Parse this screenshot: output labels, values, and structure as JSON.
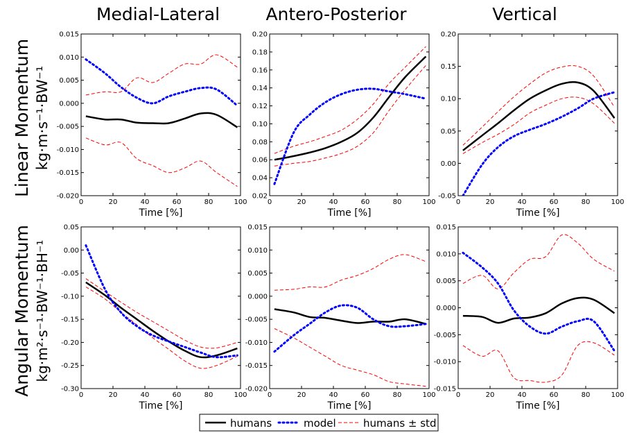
{
  "column_titles": [
    "Medial-Lateral",
    "Antero-Posterior",
    "Vertical"
  ],
  "row_labels": [
    {
      "line1": "Linear Momentum",
      "line2": "kg·m·s⁻¹·BW⁻¹"
    },
    {
      "line1": "Angular Momentum",
      "line2": "kg·m²·s⁻¹·BW⁻¹·BH⁻¹"
    }
  ],
  "legend": {
    "items": [
      {
        "label": "humans",
        "color": "#000000",
        "style": "solid"
      },
      {
        "label": "model",
        "color": "#0000ff",
        "style": "dotted"
      },
      {
        "label": "humans ± std",
        "color": "#ff0000",
        "style": "dashed"
      }
    ]
  },
  "chart_data": [
    {
      "type": "line",
      "xlabel": "Time [%]",
      "ylabel": "",
      "xlim": [
        0,
        100
      ],
      "ylim": [
        -0.02,
        0.015
      ],
      "xticks": [
        0,
        20,
        40,
        60,
        80,
        100
      ],
      "yticks": [
        -0.02,
        -0.015,
        -0.01,
        -0.005,
        0.0,
        0.005,
        0.01,
        0.015
      ],
      "ytick_labels": [
        "-0.020",
        "-0.015",
        "-0.010",
        "-0.005",
        "0.000",
        "0.005",
        "0.010",
        "0.015"
      ],
      "x": [
        3,
        15,
        25,
        35,
        45,
        55,
        65,
        75,
        85,
        98
      ],
      "series": [
        {
          "name": "humans",
          "values": [
            -0.0028,
            -0.0035,
            -0.0035,
            -0.0042,
            -0.0043,
            -0.0043,
            -0.0033,
            -0.0022,
            -0.0025,
            -0.0052
          ]
        },
        {
          "name": "model",
          "values": [
            0.0095,
            0.0065,
            0.0035,
            0.0012,
            0.0,
            0.0015,
            0.0025,
            0.0033,
            0.003,
            -0.0005
          ]
        },
        {
          "name": "humans + std",
          "values": [
            0.0018,
            0.0025,
            0.0025,
            0.0055,
            0.0045,
            0.0065,
            0.0085,
            0.0085,
            0.0105,
            0.0078
          ]
        },
        {
          "name": "humans - std",
          "values": [
            -0.0075,
            -0.009,
            -0.0085,
            -0.012,
            -0.0135,
            -0.015,
            -0.014,
            -0.0125,
            -0.015,
            -0.018
          ]
        }
      ]
    },
    {
      "type": "line",
      "xlabel": "Time [%]",
      "ylabel": "",
      "xlim": [
        0,
        100
      ],
      "ylim": [
        0.02,
        0.2
      ],
      "xticks": [
        0,
        20,
        40,
        60,
        80,
        100
      ],
      "yticks": [
        0.02,
        0.04,
        0.06,
        0.08,
        0.1,
        0.12,
        0.14,
        0.16,
        0.18,
        0.2
      ],
      "ytick_labels": [
        "0.02",
        "0.04",
        "0.06",
        "0.08",
        "0.10",
        "0.12",
        "0.14",
        "0.16",
        "0.18",
        "0.20"
      ],
      "x": [
        3,
        15,
        25,
        35,
        45,
        55,
        65,
        75,
        85,
        98
      ],
      "series": [
        {
          "name": "humans",
          "values": [
            0.06,
            0.064,
            0.068,
            0.073,
            0.08,
            0.09,
            0.107,
            0.13,
            0.152,
            0.175
          ]
        },
        {
          "name": "model",
          "values": [
            0.033,
            0.09,
            0.11,
            0.124,
            0.133,
            0.138,
            0.139,
            0.136,
            0.133,
            0.128
          ]
        },
        {
          "name": "humans + std",
          "values": [
            0.067,
            0.075,
            0.08,
            0.086,
            0.093,
            0.105,
            0.122,
            0.145,
            0.163,
            0.186
          ]
        },
        {
          "name": "humans - std",
          "values": [
            0.053,
            0.056,
            0.058,
            0.062,
            0.067,
            0.075,
            0.09,
            0.115,
            0.138,
            0.165
          ]
        }
      ]
    },
    {
      "type": "line",
      "xlabel": "Time [%]",
      "ylabel": "",
      "xlim": [
        0,
        100
      ],
      "ylim": [
        -0.05,
        0.2
      ],
      "xticks": [
        0,
        20,
        40,
        60,
        80,
        100
      ],
      "yticks": [
        -0.05,
        0.0,
        0.05,
        0.1,
        0.15,
        0.2
      ],
      "ytick_labels": [
        "-0.05",
        "0.00",
        "0.05",
        "0.10",
        "0.15",
        "0.20"
      ],
      "x": [
        3,
        15,
        25,
        35,
        45,
        55,
        65,
        75,
        85,
        98
      ],
      "series": [
        {
          "name": "humans",
          "values": [
            0.02,
            0.043,
            0.062,
            0.082,
            0.1,
            0.113,
            0.123,
            0.125,
            0.112,
            0.07
          ]
        },
        {
          "name": "model",
          "values": [
            -0.05,
            -0.002,
            0.025,
            0.042,
            0.052,
            0.061,
            0.072,
            0.085,
            0.1,
            0.11
          ]
        },
        {
          "name": "humans + std",
          "values": [
            0.028,
            0.056,
            0.08,
            0.103,
            0.123,
            0.14,
            0.149,
            0.15,
            0.135,
            0.087
          ]
        },
        {
          "name": "humans - std",
          "values": [
            0.015,
            0.032,
            0.045,
            0.06,
            0.078,
            0.09,
            0.1,
            0.102,
            0.092,
            0.062
          ]
        }
      ]
    },
    {
      "type": "line",
      "xlabel": "Time [%]",
      "ylabel": "",
      "xlim": [
        0,
        100
      ],
      "ylim": [
        -0.3,
        0.05
      ],
      "xticks": [
        0,
        20,
        40,
        60,
        80,
        100
      ],
      "yticks": [
        -0.3,
        -0.25,
        -0.2,
        -0.15,
        -0.1,
        -0.05,
        0.0,
        0.05
      ],
      "ytick_labels": [
        "-0.30",
        "-0.25",
        "-0.20",
        "-0.15",
        "-0.10",
        "-0.05",
        "0.00",
        "0.05"
      ],
      "x": [
        3,
        15,
        25,
        35,
        45,
        55,
        65,
        75,
        85,
        98
      ],
      "series": [
        {
          "name": "humans",
          "values": [
            -0.07,
            -0.098,
            -0.125,
            -0.15,
            -0.175,
            -0.198,
            -0.218,
            -0.232,
            -0.228,
            -0.213
          ]
        },
        {
          "name": "model",
          "values": [
            0.01,
            -0.085,
            -0.135,
            -0.165,
            -0.185,
            -0.198,
            -0.21,
            -0.222,
            -0.232,
            -0.228
          ]
        },
        {
          "name": "humans + std",
          "values": [
            -0.062,
            -0.09,
            -0.113,
            -0.135,
            -0.155,
            -0.175,
            -0.195,
            -0.21,
            -0.212,
            -0.2
          ]
        },
        {
          "name": "humans - std",
          "values": [
            -0.08,
            -0.106,
            -0.135,
            -0.162,
            -0.19,
            -0.215,
            -0.24,
            -0.256,
            -0.25,
            -0.23
          ]
        }
      ]
    },
    {
      "type": "line",
      "xlabel": "Time [%]",
      "ylabel": "",
      "xlim": [
        0,
        100
      ],
      "ylim": [
        -0.02,
        0.015
      ],
      "xticks": [
        0,
        20,
        40,
        60,
        80,
        100
      ],
      "yticks": [
        -0.02,
        -0.015,
        -0.01,
        -0.005,
        0.0,
        0.005,
        0.01,
        0.015
      ],
      "ytick_labels": [
        "-0.020",
        "-0.015",
        "-0.010",
        "-0.005",
        "0.000",
        "0.005",
        "0.010",
        "0.015"
      ],
      "x": [
        3,
        15,
        25,
        35,
        45,
        55,
        65,
        75,
        85,
        98
      ],
      "series": [
        {
          "name": "humans",
          "values": [
            -0.0028,
            -0.0035,
            -0.0045,
            -0.0047,
            -0.0053,
            -0.0058,
            -0.0055,
            -0.0055,
            -0.005,
            -0.006
          ]
        },
        {
          "name": "model",
          "values": [
            -0.012,
            -0.0085,
            -0.006,
            -0.0035,
            -0.002,
            -0.0025,
            -0.005,
            -0.0065,
            -0.0065,
            -0.006
          ]
        },
        {
          "name": "humans + std",
          "values": [
            0.0013,
            0.0015,
            0.002,
            0.002,
            0.0035,
            0.0045,
            0.006,
            0.008,
            0.009,
            0.0075
          ]
        },
        {
          "name": "humans - std",
          "values": [
            -0.007,
            -0.009,
            -0.011,
            -0.013,
            -0.015,
            -0.016,
            -0.017,
            -0.0185,
            -0.019,
            -0.0195
          ]
        }
      ]
    },
    {
      "type": "line",
      "xlabel": "Time [%]",
      "ylabel": "",
      "xlim": [
        0,
        100
      ],
      "ylim": [
        -0.015,
        0.015
      ],
      "xticks": [
        0,
        20,
        40,
        60,
        80,
        100
      ],
      "yticks": [
        -0.015,
        -0.01,
        -0.005,
        0.0,
        0.005,
        0.01,
        0.015
      ],
      "ytick_labels": [
        "-0.015",
        "-0.010",
        "-0.005",
        "0.000",
        "0.005",
        "0.010",
        "0.015"
      ],
      "x": [
        3,
        15,
        25,
        35,
        45,
        55,
        65,
        75,
        85,
        98
      ],
      "series": [
        {
          "name": "humans",
          "values": [
            -0.0015,
            -0.0017,
            -0.0028,
            -0.002,
            -0.0018,
            -0.001,
            0.0008,
            0.0018,
            0.0015,
            -0.001
          ]
        },
        {
          "name": "model",
          "values": [
            0.0102,
            0.0075,
            0.0045,
            -0.0005,
            -0.0035,
            -0.0048,
            -0.0035,
            -0.0025,
            -0.0025,
            -0.008
          ]
        },
        {
          "name": "humans + std",
          "values": [
            0.0045,
            0.006,
            0.0035,
            0.0065,
            0.009,
            0.0095,
            0.0135,
            0.012,
            0.009,
            0.0068
          ]
        },
        {
          "name": "humans - std",
          "values": [
            -0.007,
            -0.009,
            -0.008,
            -0.013,
            -0.0135,
            -0.0138,
            -0.0125,
            -0.007,
            -0.0065,
            -0.0088
          ]
        }
      ]
    }
  ]
}
